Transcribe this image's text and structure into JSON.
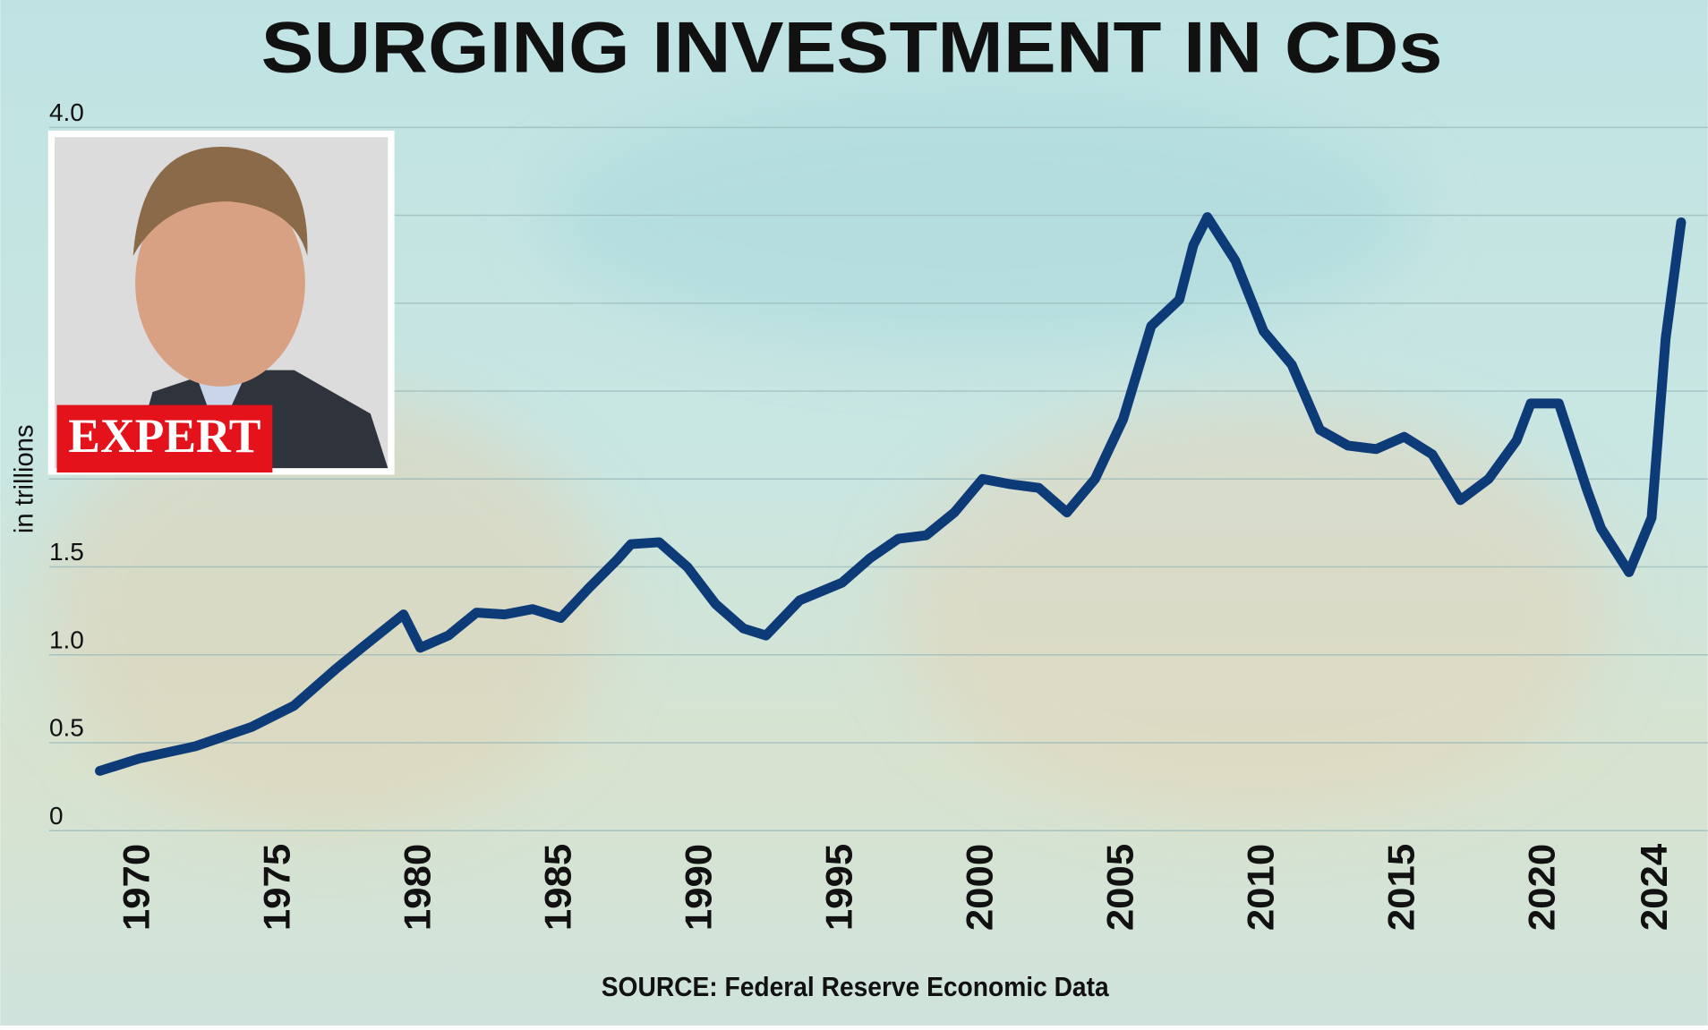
{
  "chart_data": {
    "type": "line",
    "title": "SURGING INVESTMENT IN CDs",
    "y_label": "in trillions",
    "source": "SOURCE: Federal Reserve Economic Data",
    "badge": "EXPERT",
    "color": "#0d3b78",
    "grid": true,
    "x": [
      1968.6,
      1970,
      1972,
      1974,
      1975.5,
      1977,
      1978,
      1979.4,
      1980,
      1981,
      1982,
      1983,
      1984,
      1985,
      1986,
      1987,
      1987.5,
      1988.5,
      1989.5,
      1990.5,
      1991.5,
      1992.3,
      1993.5,
      1995,
      1996,
      1997,
      1998,
      1999,
      2000,
      2001,
      2002,
      2003,
      2004,
      2005,
      2006,
      2007,
      2007.5,
      2008,
      2009,
      2010,
      2011,
      2012,
      2013,
      2014,
      2015,
      2016,
      2017,
      2018,
      2019,
      2019.5,
      2020.5,
      2021.5,
      2022,
      2023,
      2023.8,
      2024.3,
      2024.85
    ],
    "values": [
      0.34,
      0.41,
      0.48,
      0.59,
      0.71,
      0.92,
      1.05,
      1.23,
      1.04,
      1.11,
      1.24,
      1.23,
      1.26,
      1.21,
      1.38,
      1.54,
      1.63,
      1.64,
      1.5,
      1.29,
      1.15,
      1.11,
      1.31,
      1.41,
      1.55,
      1.66,
      1.68,
      1.81,
      2.0,
      1.97,
      1.95,
      1.81,
      2.0,
      2.34,
      2.87,
      3.02,
      3.33,
      3.49,
      3.24,
      2.84,
      2.65,
      2.28,
      2.19,
      2.17,
      2.24,
      2.14,
      1.88,
      2.0,
      2.22,
      2.43,
      2.43,
      1.94,
      1.72,
      1.47,
      1.78,
      2.8,
      3.46
    ],
    "xlim": [
      1966.8,
      2025.8
    ],
    "xticks": [
      1970,
      1975,
      1980,
      1985,
      1990,
      1995,
      2000,
      2005,
      2010,
      2015,
      2020,
      2024
    ],
    "ylim": [
      0,
      4
    ],
    "yticks": [
      0,
      0.5,
      {
        "value": 1,
        "label": "1.0"
      },
      1.5,
      {
        "value": 2,
        "label": null
      },
      {
        "value": 2.5,
        "label": null
      },
      {
        "value": 3,
        "label": null
      },
      {
        "value": 3.5,
        "label": null
      },
      {
        "value": 4,
        "label": "4.0"
      }
    ]
  }
}
